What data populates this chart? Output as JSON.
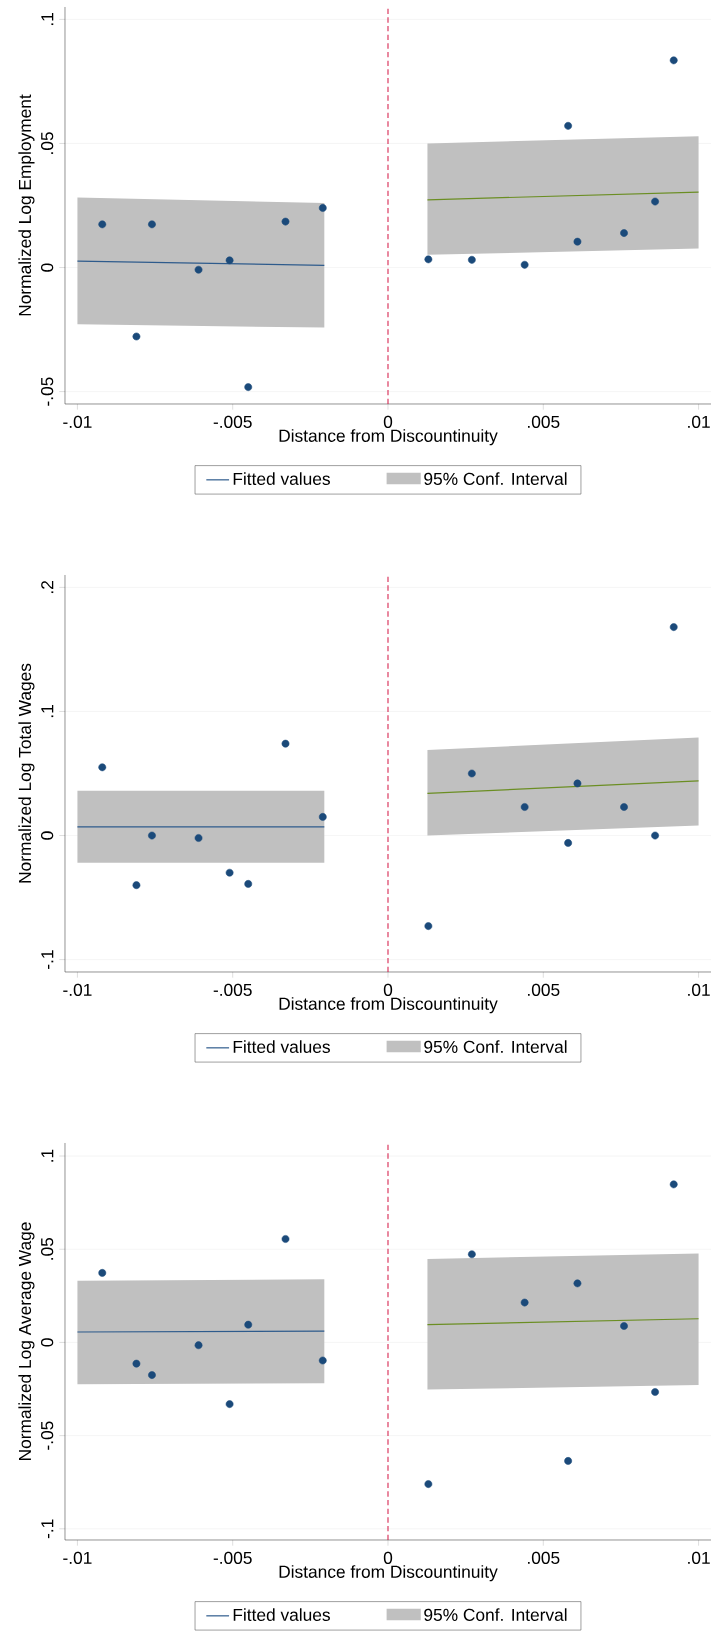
{
  "chart_data": [
    {
      "type": "scatter",
      "xlabel": "Distance from Discountinuity",
      "ylabel": "Normalized Log Employment",
      "xlim": [
        -0.0104,
        0.0104
      ],
      "ylim": [
        -0.055,
        0.105
      ],
      "xticks": [
        {
          "value": -0.01,
          "label": "-.01"
        },
        {
          "value": -0.005,
          "label": "-.005"
        },
        0,
        {
          "value": 0.005,
          "label": ".005"
        },
        {
          "value": 0.01,
          "label": ".01"
        }
      ],
      "yticks": [
        {
          "value": -0.05,
          "label": "-.05"
        },
        0,
        {
          "value": 0.05,
          "label": ".05"
        },
        {
          "value": 0.1,
          "label": ".1"
        }
      ],
      "grid": "y",
      "legend": "bottom",
      "annotations": [
        "95% Conf. Interval"
      ],
      "ref_lines": [
        {
          "axis": "x",
          "value": 0,
          "color": "#d6204c",
          "line_style": "dashed"
        }
      ],
      "series": [
        {
          "type": "line",
          "name": "Fitted values",
          "color": "#2e5b8c",
          "x": [
            -0.01,
            -0.00205
          ],
          "values": [
            0.0026,
            0.0009
          ],
          "lower": [
            -0.0229,
            -0.0242
          ],
          "upper": [
            0.0282,
            0.026
          ]
        },
        {
          "type": "line",
          "color": "#6b8e23",
          "x": [
            0.00127,
            0.01
          ],
          "values": [
            0.0273,
            0.0304
          ],
          "lower": [
            0.0051,
            0.0077
          ],
          "upper": [
            0.05,
            0.0529
          ]
        },
        {
          "color": "#1b4a7a",
          "marker": "circle",
          "x": [
            -0.0092,
            -0.0081,
            -0.0076,
            -0.0061,
            -0.0051,
            -0.0045,
            -0.0033,
            -0.0021,
            0.0013,
            0.0027,
            0.0044,
            0.0058,
            0.0061,
            0.0076,
            0.0086,
            0.0092
          ],
          "values": [
            0.0174,
            -0.0278,
            0.0174,
            -0.0009,
            0.0029,
            -0.0482,
            0.0185,
            0.024,
            0.0033,
            0.0031,
            0.0011,
            0.0571,
            0.0104,
            0.0139,
            0.0266,
            0.0835
          ]
        }
      ]
    },
    {
      "type": "scatter",
      "xlabel": "Distance from Discountinuity",
      "ylabel": "Normalized Log Total Wages",
      "xlim": [
        -0.0104,
        0.0104
      ],
      "ylim": [
        -0.11,
        0.21
      ],
      "xticks": [
        {
          "value": -0.01,
          "label": "-.01"
        },
        {
          "value": -0.005,
          "label": "-.005"
        },
        0,
        {
          "value": 0.005,
          "label": ".005"
        },
        {
          "value": 0.01,
          "label": ".01"
        }
      ],
      "yticks": [
        {
          "value": -0.1,
          "label": "-.1"
        },
        0,
        {
          "value": 0.1,
          "label": ".1"
        },
        {
          "value": 0.2,
          "label": ".2"
        }
      ],
      "grid": "y",
      "legend": "bottom",
      "annotations": [
        "95% Conf. Interval"
      ],
      "ref_lines": [
        {
          "axis": "x",
          "value": 0,
          "color": "#d6204c",
          "line_style": "dashed"
        }
      ],
      "series": [
        {
          "type": "line",
          "name": "Fitted values",
          "color": "#2e5b8c",
          "x": [
            -0.01,
            -0.00205
          ],
          "values": [
            0.007,
            0.007
          ],
          "lower": [
            -0.022,
            -0.022
          ],
          "upper": [
            0.036,
            0.036
          ]
        },
        {
          "type": "line",
          "color": "#6b8e23",
          "x": [
            0.00127,
            0.01
          ],
          "values": [
            0.034,
            0.044
          ],
          "lower": [
            0.0,
            0.008
          ],
          "upper": [
            0.069,
            0.079
          ]
        },
        {
          "color": "#1b4a7a",
          "marker": "circle",
          "x": [
            -0.0092,
            -0.0081,
            -0.0076,
            -0.0061,
            -0.0051,
            -0.0045,
            -0.0033,
            -0.0021,
            0.0013,
            0.0027,
            0.0044,
            0.0058,
            0.0061,
            0.0076,
            0.0086,
            0.0092
          ],
          "values": [
            0.055,
            -0.04,
            0.0,
            -0.002,
            -0.03,
            -0.039,
            0.074,
            0.015,
            -0.073,
            0.05,
            0.023,
            -0.006,
            0.042,
            0.023,
            0.0,
            0.168
          ]
        }
      ]
    },
    {
      "type": "scatter",
      "xlabel": "Distance from Discountinuity",
      "ylabel": "Normalized Log Average Wage",
      "xlim": [
        -0.0104,
        0.0104
      ],
      "ylim": [
        -0.106,
        0.107
      ],
      "xticks": [
        {
          "value": -0.01,
          "label": "-.01"
        },
        {
          "value": -0.005,
          "label": "-.005"
        },
        0,
        {
          "value": 0.005,
          "label": ".005"
        },
        {
          "value": 0.01,
          "label": ".01"
        }
      ],
      "yticks": [
        {
          "value": -0.1,
          "label": "-.1"
        },
        {
          "value": -0.05,
          "label": "-.05"
        },
        0,
        {
          "value": 0.05,
          "label": ".05"
        },
        {
          "value": 0.1,
          "label": ".1"
        }
      ],
      "grid": "y",
      "legend": "bottom",
      "annotations": [
        "95% Conf. Interval"
      ],
      "ref_lines": [
        {
          "axis": "x",
          "value": 0,
          "color": "#d6204c",
          "line_style": "dashed"
        }
      ],
      "series": [
        {
          "type": "line",
          "name": "Fitted values",
          "color": "#2e5b8c",
          "x": [
            -0.01,
            -0.00205
          ],
          "values": [
            0.0056,
            0.0061
          ],
          "lower": [
            -0.0224,
            -0.0219
          ],
          "upper": [
            0.0331,
            0.0339
          ]
        },
        {
          "type": "line",
          "color": "#6b8e23",
          "x": [
            0.00127,
            0.01
          ],
          "values": [
            0.0095,
            0.0127
          ],
          "lower": [
            -0.0253,
            -0.0229
          ],
          "upper": [
            0.0448,
            0.0477
          ]
        },
        {
          "color": "#1b4a7a",
          "marker": "circle",
          "x": [
            -0.0092,
            -0.0081,
            -0.0076,
            -0.0061,
            -0.0051,
            -0.0045,
            -0.0033,
            -0.0021,
            0.0013,
            0.0027,
            0.0044,
            0.0058,
            0.0061,
            0.0076,
            0.0086,
            0.0092
          ],
          "values": [
            0.0373,
            -0.0114,
            -0.0175,
            -0.0015,
            -0.0331,
            0.0095,
            0.0555,
            -0.0097,
            -0.076,
            0.0473,
            0.0214,
            -0.0636,
            0.0317,
            0.0088,
            -0.0266,
            0.0848
          ]
        }
      ]
    }
  ]
}
